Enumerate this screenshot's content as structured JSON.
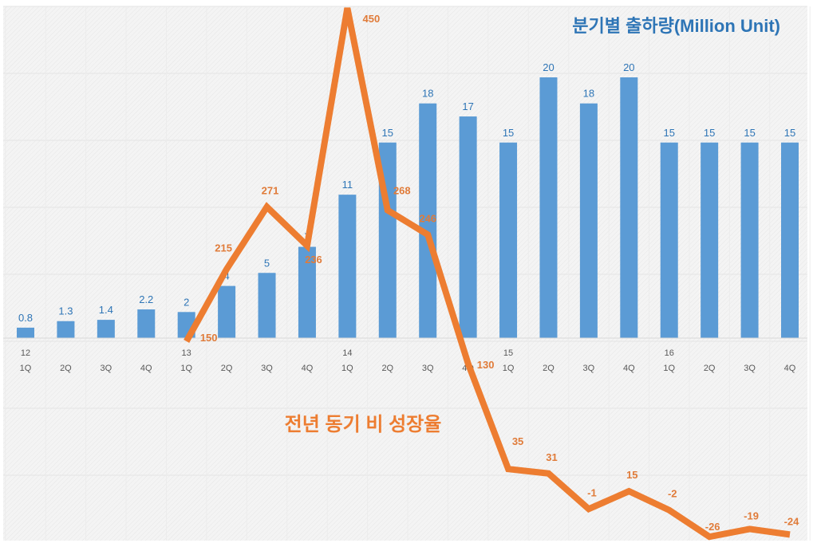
{
  "chart_data": {
    "type": "bar+line",
    "title": "분기별 출하량(Million Unit)",
    "line_title": "전년 동기 비 성장율",
    "categories": [
      "1Q",
      "2Q",
      "3Q",
      "4Q",
      "1Q",
      "2Q",
      "3Q",
      "4Q",
      "1Q",
      "2Q",
      "3Q",
      "4Q",
      "1Q",
      "2Q",
      "3Q",
      "4Q",
      "1Q",
      "2Q",
      "3Q",
      "4Q"
    ],
    "year_labels": [
      "12",
      "",
      "",
      "",
      "13",
      "",
      "",
      "",
      "14",
      "",
      "",
      "",
      "15",
      "",
      "",
      "",
      "16",
      "",
      "",
      ""
    ],
    "series": [
      {
        "type": "bar",
        "values": [
          0.8,
          1.3,
          1.4,
          2.2,
          2,
          4,
          5,
          7,
          11,
          15,
          18,
          17,
          15,
          20,
          18,
          20,
          15,
          15,
          15,
          15
        ],
        "color": "#5b9bd5",
        "label_color": "#2e75b6"
      },
      {
        "type": "line",
        "values": [
          null,
          null,
          null,
          null,
          150,
          215,
          271,
          236,
          450,
          268,
          246,
          130,
          35,
          31,
          -1,
          15,
          -2,
          -26,
          -19,
          -24
        ],
        "color": "#ed7d31"
      }
    ],
    "bar_labels": [
      "0.8",
      "1.3",
      "1.4",
      "2.2",
      "2",
      "4",
      "5",
      "7",
      "11",
      "15",
      "18",
      "17",
      "15",
      "20",
      "18",
      "20",
      "15",
      "15",
      "15",
      "15"
    ],
    "line_labels": [
      "",
      "",
      "",
      "",
      "150",
      "215",
      "271",
      "236",
      "450",
      "268",
      "246",
      "130",
      "35",
      "31",
      "-1",
      "15",
      "-2",
      "-26",
      "-19",
      "-24"
    ],
    "bar_ylim": [
      0,
      25
    ],
    "line_ylim": [
      -30,
      460
    ],
    "grid": true,
    "legend": "none"
  }
}
